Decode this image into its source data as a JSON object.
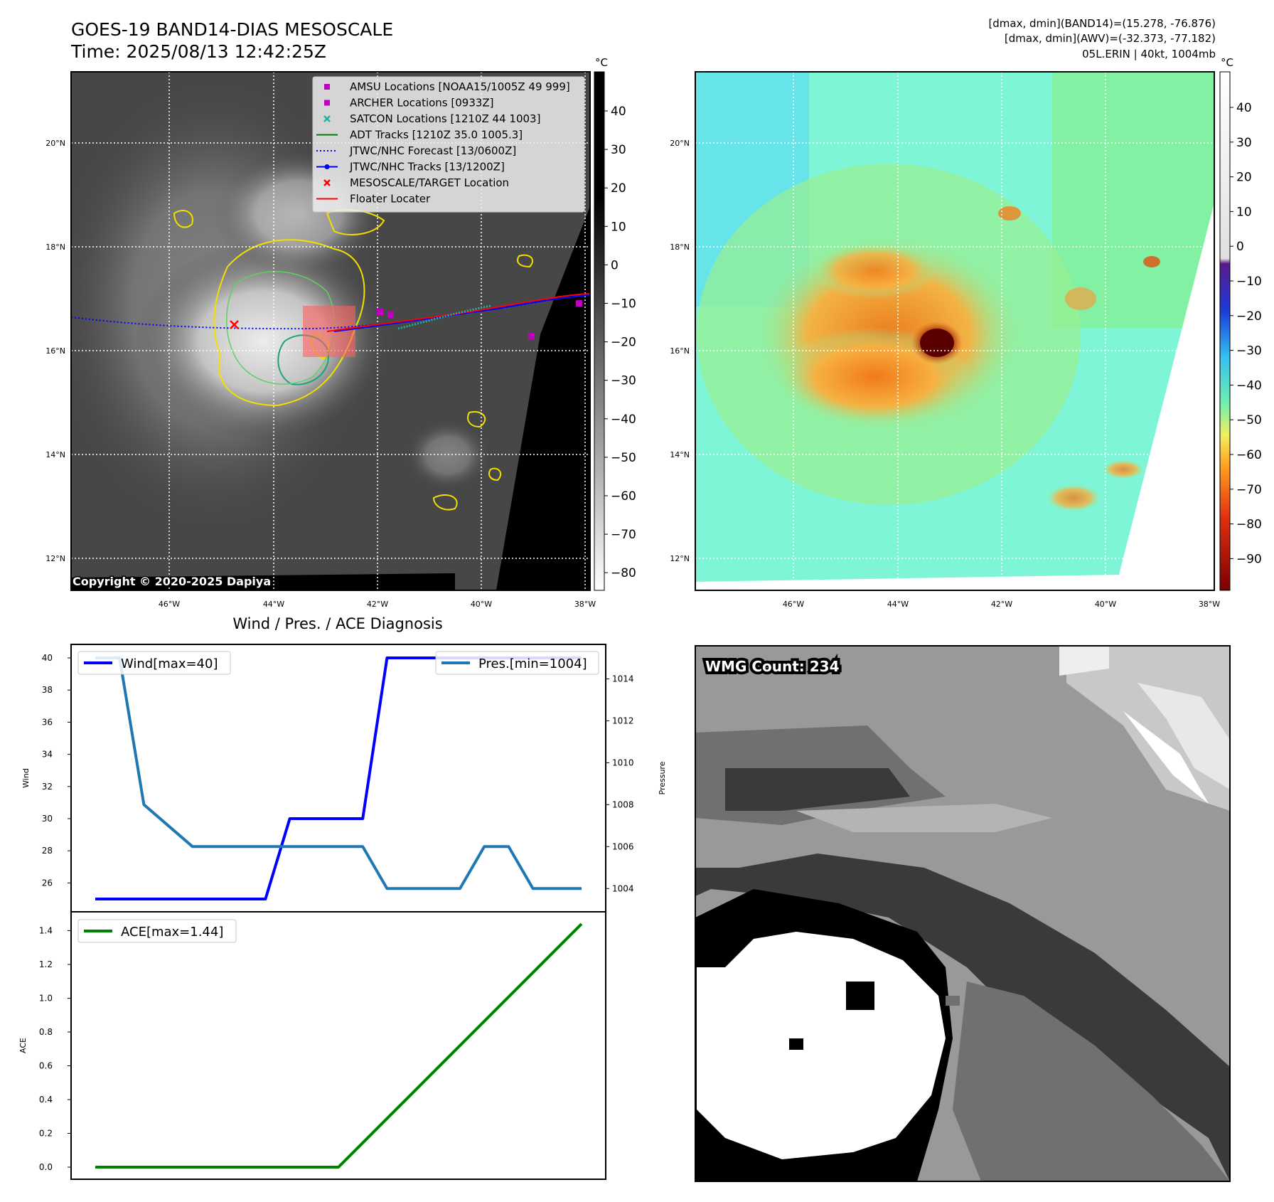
{
  "header": {
    "title": "GOES-19 BAND14-DIAS MESOSCALE",
    "time": "Time: 2025/08/13 12:42:25Z",
    "stats_band14": "[dmax, dmin](BAND14)=(15.278, -76.876)",
    "stats_awv": "[dmax, dmin](AWV)=(-32.373, -77.182)",
    "storm": "05L.ERIN | 40kt, 1004mb"
  },
  "maps": {
    "lat_ticks": [
      "20°N",
      "18°N",
      "16°N",
      "14°N",
      "12°N"
    ],
    "lon_ticks": [
      "46°W",
      "44°W",
      "42°W",
      "40°W",
      "38°W"
    ],
    "copyright": "Copyright © 2020-2025 Dapiya",
    "band14_colorbar": {
      "unit": "°C",
      "ticks": [
        "40",
        "30",
        "20",
        "10",
        "0",
        "−10",
        "−20",
        "−30",
        "−40",
        "−50",
        "−60",
        "−70",
        "−80"
      ]
    },
    "awv_colorbar": {
      "unit": "°C",
      "ticks": [
        "40",
        "30",
        "20",
        "10",
        "0",
        "−10",
        "−20",
        "−30",
        "−40",
        "−50",
        "−60",
        "−70",
        "−80",
        "−90"
      ]
    },
    "legend": [
      {
        "label": "AMSU Locations [NOAA15/1005Z 49 999]",
        "marker": "square",
        "color": "#c000c0"
      },
      {
        "label": "ARCHER Locations [0933Z]",
        "marker": "square",
        "color": "#c000c0"
      },
      {
        "label": "SATCON Locations [1210Z 44 1003]",
        "marker": "x",
        "color": "#20b0a0"
      },
      {
        "label": "ADT Tracks [1210Z 35.0 1005.3]",
        "marker": "line",
        "color": "#008000"
      },
      {
        "label": "JTWC/NHC Forecast [13/0600Z]",
        "marker": "dotted",
        "color": "#0000ff"
      },
      {
        "label": "JTWC/NHC Tracks [13/1200Z]",
        "marker": "line-dot",
        "color": "#0000ff"
      },
      {
        "label": "MESOSCALE/TARGET Location",
        "marker": "x",
        "color": "#ff0000"
      },
      {
        "label": "Floater Locater",
        "marker": "line",
        "color": "#ff0000"
      }
    ]
  },
  "diagnosis": {
    "title": "Wind / Pres. / ACE Diagnosis",
    "wind_axis_label": "Wind",
    "pressure_axis_label": "Pressure",
    "ace_axis_label": "ACE",
    "wind_legend": "Wind[max=40]",
    "pres_legend": "Pres.[min=1004]",
    "ace_legend": "ACE[max=1.44]",
    "wind_ticks": [
      "40",
      "38",
      "36",
      "34",
      "32",
      "30",
      "28",
      "26"
    ],
    "pres_ticks": [
      "1014",
      "1012",
      "1010",
      "1008",
      "1006",
      "1004"
    ],
    "ace_ticks": [
      "1.4",
      "1.2",
      "1.0",
      "0.8",
      "0.6",
      "0.4",
      "0.2",
      "0.0"
    ]
  },
  "wmg": {
    "label": "WMG Count: 234"
  },
  "chart_data": [
    {
      "type": "line",
      "x": [
        0,
        1,
        2,
        3,
        4,
        5,
        6,
        7,
        8,
        9,
        10,
        11,
        12,
        13,
        14,
        15,
        16,
        17,
        18,
        19,
        20
      ],
      "series": [
        {
          "name": "Wind[max=40]",
          "axis": "left",
          "color": "#0000ff",
          "values": [
            25,
            25,
            25,
            25,
            25,
            25,
            25,
            25,
            30,
            30,
            30,
            30,
            40,
            40,
            40,
            40,
            40,
            40,
            40,
            40,
            40
          ]
        },
        {
          "name": "Pres.[min=1004]",
          "axis": "right",
          "color": "#1f77b4",
          "values": [
            1015,
            1015,
            1008,
            1007,
            1006,
            1006,
            1006,
            1006,
            1006,
            1006,
            1006,
            1006,
            1004,
            1004,
            1004,
            1004,
            1006,
            1006,
            1004,
            1004,
            1004
          ]
        }
      ],
      "ylim_left": [
        25,
        40
      ],
      "ylim_right": [
        1003.5,
        1015
      ],
      "ylabel": "Wind",
      "y2label": "Pressure",
      "title": "Wind / Pres. / ACE Diagnosis",
      "legend": "top-left / top-right"
    },
    {
      "type": "line",
      "x": [
        0,
        1,
        2,
        3,
        4,
        5,
        6,
        7,
        8,
        9,
        10,
        11,
        12,
        13,
        14,
        15,
        16,
        17,
        18,
        19,
        20
      ],
      "series": [
        {
          "name": "ACE[max=1.44]",
          "color": "#008000",
          "values": [
            0,
            0,
            0,
            0,
            0,
            0,
            0,
            0,
            0,
            0,
            0,
            0.144,
            0.288,
            0.432,
            0.576,
            0.72,
            0.864,
            1.008,
            1.152,
            1.296,
            1.44
          ]
        }
      ],
      "ylim": [
        0,
        1.44
      ],
      "ylabel": "ACE",
      "legend": "top-left"
    }
  ]
}
